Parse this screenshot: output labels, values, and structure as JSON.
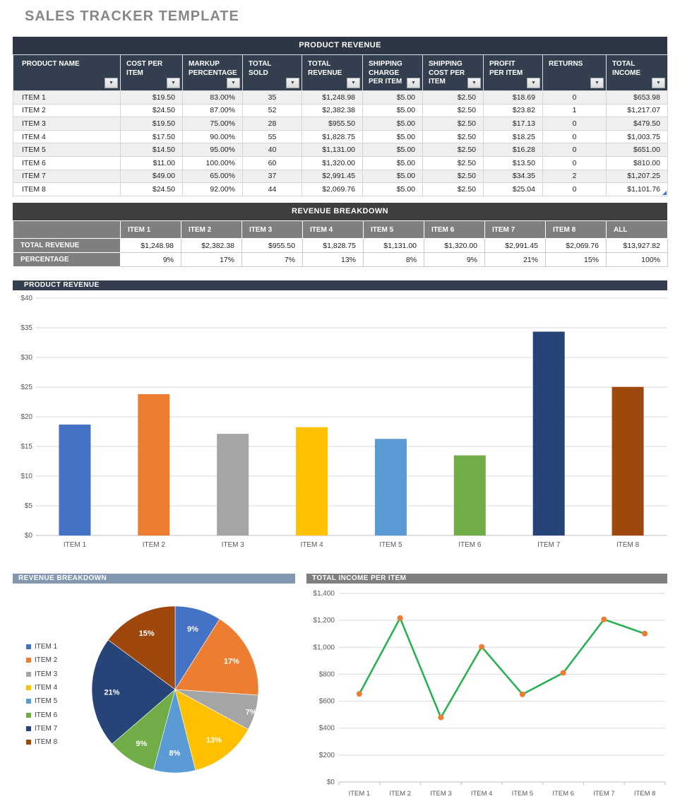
{
  "page": {
    "title": "SALES TRACKER TEMPLATE"
  },
  "icons": {
    "filter_dropdown": "▼"
  },
  "colors": {
    "series": [
      "#4472C4",
      "#ED7D31",
      "#A5A5A5",
      "#FFC000",
      "#5B9BD5",
      "#70AD47",
      "#264478",
      "#9E480E"
    ],
    "table_header_dark": "#333F4F",
    "breakdown_header_dark": "#3F3F3F",
    "gray_header": "#7F7F7F",
    "bluegray_header": "#8497B0",
    "line_green": "#22B14C",
    "marker_orange": "#ED7D31",
    "row_stripe": "#EFEFEF"
  },
  "product_table": {
    "title": "PRODUCT REVENUE",
    "columns": [
      "PRODUCT NAME",
      "COST PER ITEM",
      "MARKUP PERCENTAGE",
      "TOTAL SOLD",
      "TOTAL REVENUE",
      "SHIPPING CHARGE PER ITEM",
      "SHIPPING COST PER ITEM",
      "PROFIT PER ITEM",
      "RETURNS",
      "TOTAL INCOME"
    ],
    "rows": [
      [
        "ITEM 1",
        "$19.50",
        "83.00%",
        "35",
        "$1,248.98",
        "$5.00",
        "$2.50",
        "$18.69",
        "0",
        "$653.98"
      ],
      [
        "ITEM 2",
        "$24.50",
        "87.00%",
        "52",
        "$2,382.38",
        "$5.00",
        "$2.50",
        "$23.82",
        "1",
        "$1,217.07"
      ],
      [
        "ITEM 3",
        "$19.50",
        "75.00%",
        "28",
        "$955.50",
        "$5.00",
        "$2.50",
        "$17.13",
        "0",
        "$479.50"
      ],
      [
        "ITEM 4",
        "$17.50",
        "90.00%",
        "55",
        "$1,828.75",
        "$5.00",
        "$2.50",
        "$18.25",
        "0",
        "$1,003.75"
      ],
      [
        "ITEM 5",
        "$14.50",
        "95.00%",
        "40",
        "$1,131.00",
        "$5.00",
        "$2.50",
        "$16.28",
        "0",
        "$651.00"
      ],
      [
        "ITEM 6",
        "$11.00",
        "100.00%",
        "60",
        "$1,320.00",
        "$5.00",
        "$2.50",
        "$13.50",
        "0",
        "$810.00"
      ],
      [
        "ITEM 7",
        "$49.00",
        "65.00%",
        "37",
        "$2,991.45",
        "$5.00",
        "$2.50",
        "$34.35",
        "2",
        "$1,207.25"
      ],
      [
        "ITEM 8",
        "$24.50",
        "92.00%",
        "44",
        "$2,069.76",
        "$5.00",
        "$2.50",
        "$25.04",
        "0",
        "$1,101.76"
      ]
    ]
  },
  "breakdown_table": {
    "title": "REVENUE BREAKDOWN",
    "columns": [
      "",
      "ITEM 1",
      "ITEM 2",
      "ITEM 3",
      "ITEM 4",
      "ITEM 5",
      "ITEM 6",
      "ITEM 7",
      "ITEM 8",
      "ALL"
    ],
    "rows": [
      {
        "label": "TOTAL REVENUE",
        "values": [
          "$1,248.98",
          "$2,382.38",
          "$955.50",
          "$1,828.75",
          "$1,131.00",
          "$1,320.00",
          "$2,991.45",
          "$2,069.76",
          "$13,927.82"
        ]
      },
      {
        "label": "PERCENTAGE",
        "values": [
          "9%",
          "17%",
          "7%",
          "13%",
          "8%",
          "9%",
          "21%",
          "15%",
          "100%"
        ]
      }
    ]
  },
  "chart_data": [
    {
      "type": "bar",
      "title": "PRODUCT REVENUE",
      "categories": [
        "ITEM 1",
        "ITEM 2",
        "ITEM 3",
        "ITEM 4",
        "ITEM 5",
        "ITEM 6",
        "ITEM 7",
        "ITEM 8"
      ],
      "values": [
        18.69,
        23.82,
        17.13,
        18.25,
        16.28,
        13.5,
        34.35,
        25.04
      ],
      "ylim": [
        0,
        40
      ],
      "ytick_step": 5,
      "ytick_labels": [
        "$0",
        "$5",
        "$10",
        "$15",
        "$20",
        "$25",
        "$30",
        "$35",
        "$40"
      ],
      "grid": true,
      "bar_colors": [
        "#4472C4",
        "#ED7D31",
        "#A5A5A5",
        "#FFC000",
        "#5B9BD5",
        "#70AD47",
        "#264478",
        "#9E480E"
      ]
    },
    {
      "type": "pie",
      "title": "REVENUE BREAKDOWN",
      "labels": [
        "ITEM 1",
        "ITEM 2",
        "ITEM 3",
        "ITEM 4",
        "ITEM 5",
        "ITEM 6",
        "ITEM 7",
        "ITEM 8"
      ],
      "values": [
        1248.98,
        2382.38,
        955.5,
        1828.75,
        1131.0,
        1320.0,
        2991.45,
        2069.76
      ],
      "slice_labels": [
        "9%",
        "17%",
        "7%",
        "13%",
        "8%",
        "9%",
        "21%",
        "15%"
      ],
      "legend_position": "left",
      "colors": [
        "#4472C4",
        "#ED7D31",
        "#A5A5A5",
        "#FFC000",
        "#5B9BD5",
        "#70AD47",
        "#264478",
        "#9E480E"
      ]
    },
    {
      "type": "line",
      "title": "TOTAL INCOME PER ITEM",
      "categories": [
        "ITEM 1",
        "ITEM 2",
        "ITEM 3",
        "ITEM 4",
        "ITEM 5",
        "ITEM 6",
        "ITEM 7",
        "ITEM 8"
      ],
      "values": [
        653.98,
        1217.07,
        479.5,
        1003.75,
        651.0,
        810.0,
        1207.25,
        1101.76
      ],
      "ylim": [
        0,
        1400
      ],
      "ytick_step": 200,
      "ytick_labels": [
        "$0",
        "$200",
        "$400",
        "$600",
        "$800",
        "$1,000",
        "$1,200",
        "$1,400"
      ],
      "grid": true,
      "line_color": "#22B14C",
      "marker_color": "#ED7D31"
    }
  ]
}
